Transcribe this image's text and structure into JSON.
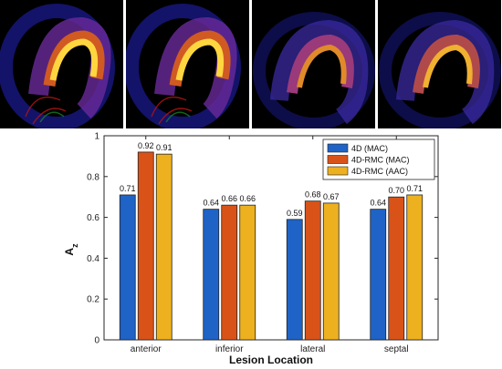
{
  "colors": {
    "mac": "#1f63c6",
    "rmc_mac": "#d95319",
    "rmc_aac": "#edb120"
  },
  "chart_data": {
    "type": "bar",
    "title": "",
    "xlabel": "Lesion Location",
    "ylabel": "A",
    "ylabel_subscript": "z",
    "ylim": [
      0,
      1
    ],
    "yticks": [
      "0",
      "0.2",
      "0.4",
      "0.6",
      "0.8",
      "1"
    ],
    "grid": false,
    "legend_position": "top-right",
    "categories": [
      "anterior",
      "inferior",
      "lateral",
      "septal"
    ],
    "series": [
      {
        "name": "4D (MAC)",
        "values": [
          0.71,
          0.64,
          0.59,
          0.64
        ],
        "labels": [
          "0.71",
          "0.64",
          "0.59",
          "0.64"
        ]
      },
      {
        "name": "4D-RMC (MAC)",
        "values": [
          0.92,
          0.66,
          0.68,
          0.7
        ],
        "labels": [
          "0.92",
          "0.66",
          "0.68",
          "0.70"
        ]
      },
      {
        "name": "4D-RMC (AAC)",
        "values": [
          0.91,
          0.66,
          0.67,
          0.71
        ],
        "labels": [
          "0.91",
          "0.66",
          "0.67",
          "0.71"
        ]
      }
    ]
  }
}
